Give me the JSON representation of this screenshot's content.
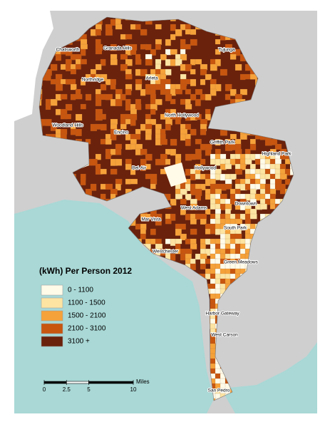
{
  "legend": {
    "title": "(kWh) Per Person 2012",
    "items": [
      {
        "label": "0 - 1100",
        "color": "#fffbe8"
      },
      {
        "label": "1100 - 1500",
        "color": "#fde4a3"
      },
      {
        "label": "1500 - 2100",
        "color": "#f6a23a"
      },
      {
        "label": "2100 - 3100",
        "color": "#c8560f"
      },
      {
        "label": "3100 +",
        "color": "#6a220c"
      }
    ]
  },
  "places": [
    "Granada Hills",
    "Chatsworth",
    "Tujunga",
    "Arleta",
    "Northridge",
    "North Hollywood",
    "Woodland Hills",
    "Encino",
    "Griffith Park",
    "Highland Park",
    "Bel-Air",
    "Hollywood",
    "Downtown",
    "West Adams",
    "Mar Vista",
    "South Park",
    "Westchester",
    "Green Meadows",
    "Harbor Gateway",
    "West Carson",
    "San Pedro"
  ],
  "scale_bar": {
    "unit": "Miles",
    "ticks": [
      0,
      2.5,
      5,
      10
    ]
  }
}
